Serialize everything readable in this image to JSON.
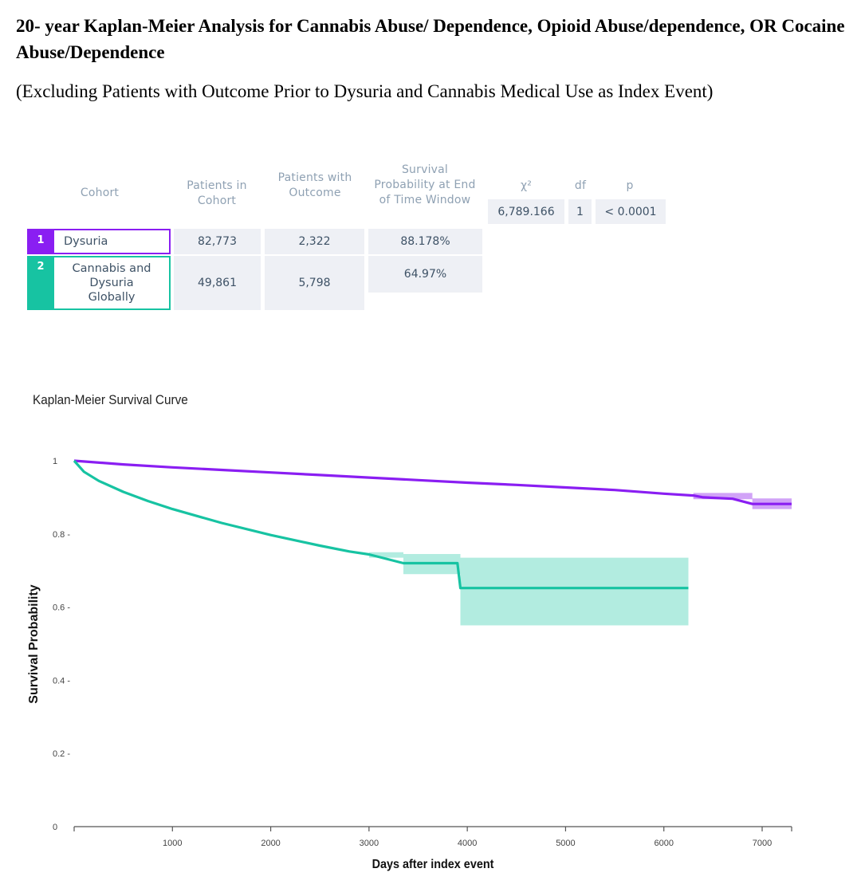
{
  "title": "20- year Kaplan-Meier Analysis for Cannabis Abuse/ Dependence, Opioid Abuse/dependence, OR Cocaine Abuse/Dependence",
  "subtitle": "(Excluding Patients with Outcome Prior to Dysuria and Cannabis Medical Use as Index Event)",
  "table": {
    "headers": {
      "cohort": "Cohort",
      "patients_in_cohort": "Patients in Cohort",
      "patients_with_outcome": "Patients with Outcome",
      "survival_probability": "Survival Probability at End of Time Window",
      "chi2": "χ²",
      "df": "df",
      "p": "p"
    },
    "rows": [
      {
        "num": "1",
        "name": "Dysuria",
        "patients": "82,773",
        "outcome": "2,322",
        "survival": "88.178%",
        "color": "#8a1ef2"
      },
      {
        "num": "2",
        "name": "Cannabis and Dysuria Globally",
        "patients": "49,861",
        "outcome": "5,798",
        "survival": "64.97%",
        "color": "#17c3a2"
      }
    ],
    "stats": {
      "chi2": "6,789.166",
      "df": "1",
      "p": "< 0.0001"
    }
  },
  "chart_data": {
    "type": "line",
    "title": "Kaplan-Meier Survival Curve",
    "xlabel": "Days after index event",
    "ylabel": "Survival Probability",
    "xlim": [
      0,
      7300
    ],
    "ylim": [
      0,
      1
    ],
    "xticks": [
      1000,
      2000,
      3000,
      4000,
      5000,
      6000,
      7000
    ],
    "yticks": [
      0,
      0.2,
      0.4,
      0.6,
      0.8,
      1
    ],
    "ytick_labels": [
      "0",
      "0.2 -",
      "0.4 -",
      "0.6 -",
      "0.8 -",
      "1"
    ],
    "legend": "none",
    "series": [
      {
        "color": "#8a1ef2",
        "band_color": "#c58cf5",
        "x": [
          0,
          500,
          1000,
          1500,
          2000,
          2500,
          3000,
          3500,
          4000,
          4500,
          5000,
          5500,
          6000,
          6300,
          6400,
          6700,
          6900,
          7300
        ],
        "y": [
          1.0,
          0.99,
          0.982,
          0.975,
          0.968,
          0.961,
          0.954,
          0.947,
          0.94,
          0.934,
          0.927,
          0.92,
          0.91,
          0.905,
          0.9,
          0.896,
          0.882,
          0.882
        ],
        "ci_x": [
          6300,
          6900,
          6900,
          7300
        ],
        "ci_lower": [
          0.895,
          0.886,
          0.868,
          0.868
        ],
        "ci_upper": [
          0.912,
          0.905,
          0.897,
          0.897
        ]
      },
      {
        "color": "#17c3a2",
        "band_color": "#9fe7d8",
        "x": [
          0,
          100,
          250,
          500,
          750,
          1000,
          1500,
          2000,
          2500,
          2800,
          3000,
          3350,
          3900,
          3930,
          6250
        ],
        "y": [
          1.0,
          0.97,
          0.945,
          0.915,
          0.89,
          0.868,
          0.83,
          0.797,
          0.768,
          0.752,
          0.744,
          0.72,
          0.72,
          0.652,
          0.652
        ],
        "ci_x": [
          3000,
          3350,
          3900,
          3930,
          6250
        ],
        "ci_lower": [
          0.735,
          0.69,
          0.69,
          0.55,
          0.55
        ],
        "ci_upper": [
          0.75,
          0.745,
          0.745,
          0.735,
          0.735
        ]
      }
    ]
  }
}
